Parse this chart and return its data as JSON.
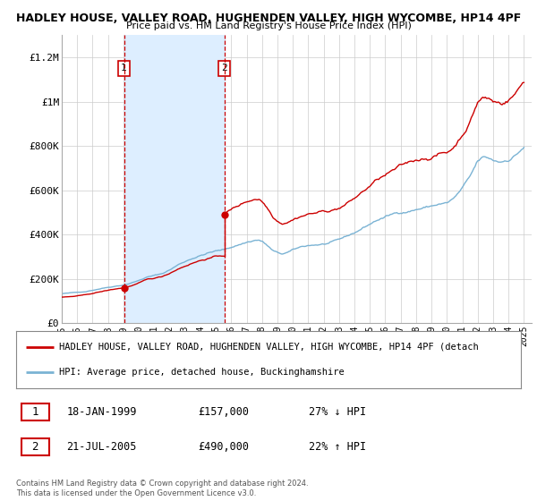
{
  "title_line1": "HADLEY HOUSE, VALLEY ROAD, HUGHENDEN VALLEY, HIGH WYCOMBE, HP14 4PF",
  "title_line2": "Price paid vs. HM Land Registry's House Price Index (HPI)",
  "ylabel_ticks": [
    "£0",
    "£200K",
    "£400K",
    "£600K",
    "£800K",
    "£1M",
    "£1.2M"
  ],
  "ytick_values": [
    0,
    200000,
    400000,
    600000,
    800000,
    1000000,
    1200000
  ],
  "ylim": [
    0,
    1300000
  ],
  "xlim_start": 1995.0,
  "xlim_end": 2025.5,
  "red_line_color": "#cc0000",
  "blue_line_color": "#7ab3d4",
  "shade_color": "#ddeeff",
  "marker1_date": 1999.04,
  "marker1_value": 157000,
  "marker2_date": 2005.55,
  "marker2_value": 490000,
  "vline1_x": 1999.04,
  "vline2_x": 2005.55,
  "legend_red_label": "HADLEY HOUSE, VALLEY ROAD, HUGHENDEN VALLEY, HIGH WYCOMBE, HP14 4PF (detach",
  "legend_blue_label": "HPI: Average price, detached house, Buckinghamshire",
  "sale1_label": "1",
  "sale1_date": "18-JAN-1999",
  "sale1_price": "£157,000",
  "sale1_hpi": "27% ↓ HPI",
  "sale2_label": "2",
  "sale2_date": "21-JUL-2005",
  "sale2_price": "£490,000",
  "sale2_hpi": "22% ↑ HPI",
  "footer": "Contains HM Land Registry data © Crown copyright and database right 2024.\nThis data is licensed under the Open Government Licence v3.0.",
  "background_color": "#ffffff",
  "grid_color": "#cccccc"
}
